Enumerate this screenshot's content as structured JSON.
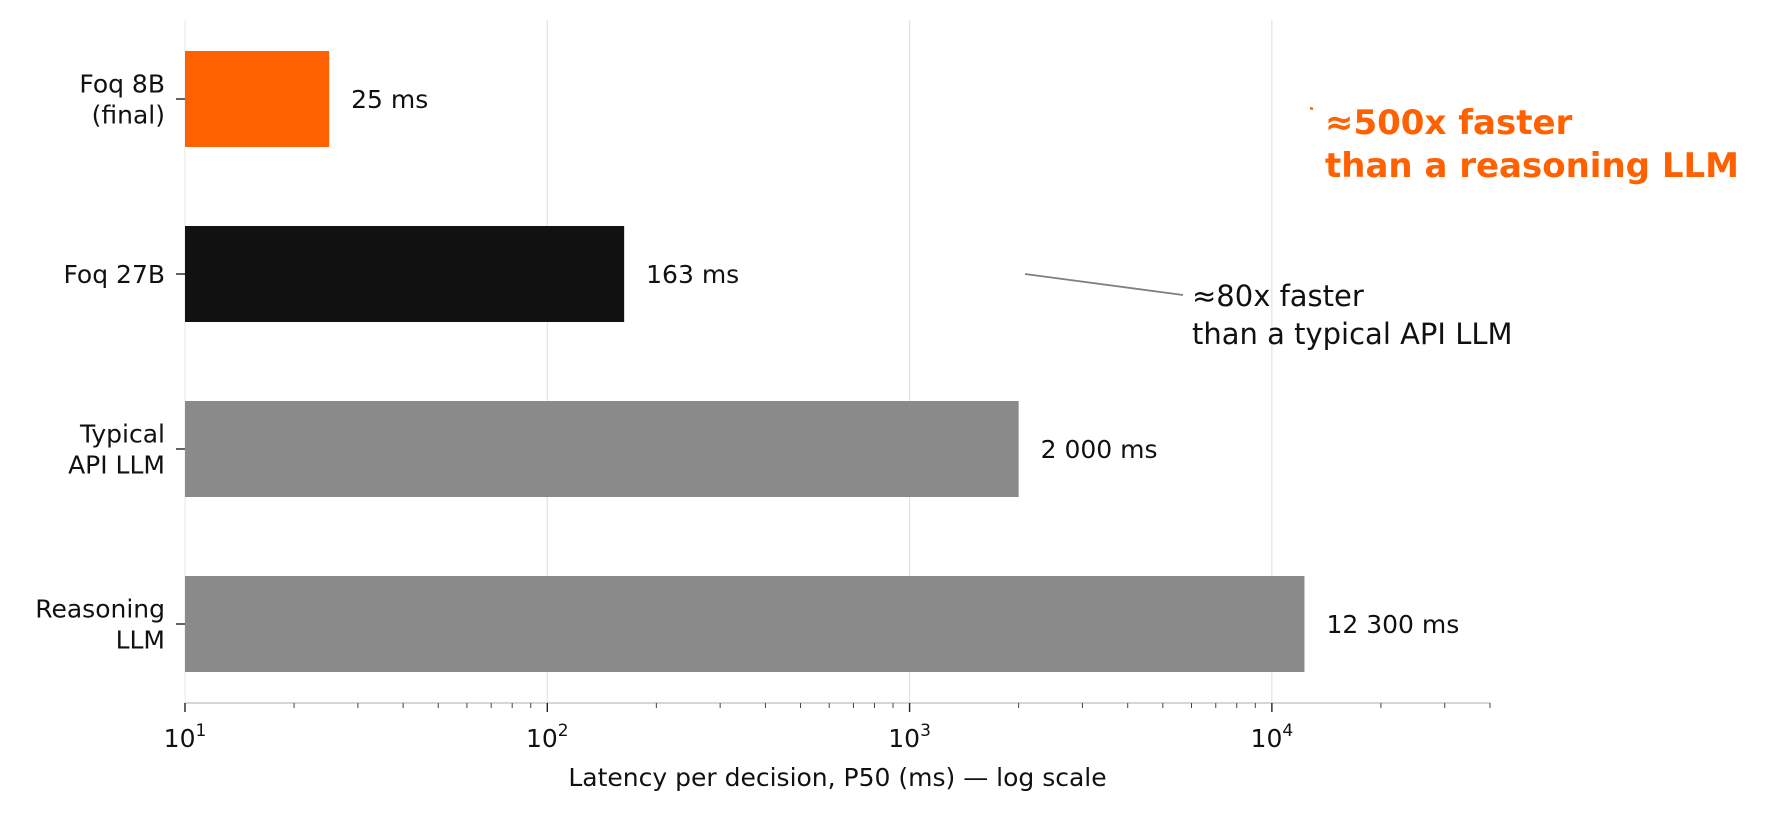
{
  "chart_data": {
    "type": "bar",
    "orientation": "horizontal",
    "categories": [
      [
        "Foq 8B",
        "(final)"
      ],
      [
        "Foq 27B"
      ],
      [
        "Typical",
        "API LLM"
      ],
      [
        "Reasoning",
        "LLM"
      ]
    ],
    "values": [
      25,
      163,
      2000,
      12300
    ],
    "value_labels": [
      "25 ms",
      "163 ms",
      "2 000 ms",
      "12 300 ms"
    ],
    "bar_colors": [
      "#ff6000",
      "#111111",
      "#8a8a8a",
      "#8a8a8a"
    ],
    "xlabel": "Latency per decision, P50 (ms) — log scale",
    "ylabel": "",
    "xscale": "log",
    "xlim": [
      10,
      40000
    ],
    "xticks": [
      {
        "base": "10",
        "exp": "1",
        "value": 10
      },
      {
        "base": "10",
        "exp": "2",
        "value": 100
      },
      {
        "base": "10",
        "exp": "3",
        "value": 1000
      },
      {
        "base": "10",
        "exp": "4",
        "value": 10000
      }
    ],
    "grid": "vertical-major",
    "annotations": [
      {
        "lines": [
          "≈500x faster",
          "than a reasoning LLM"
        ],
        "color": "#ff6000",
        "weight": "bold",
        "arrow_value": 12300
      },
      {
        "lines": [
          "≈80x faster",
          "than a typical API LLM"
        ],
        "color": "#111111",
        "weight": "normal",
        "arrow_value": 2000
      }
    ]
  }
}
